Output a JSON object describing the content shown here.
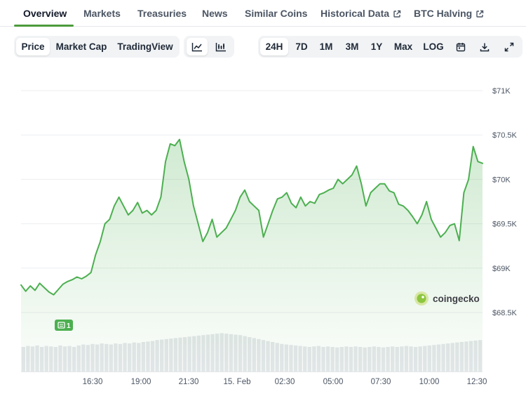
{
  "tabs": [
    {
      "label": "Overview",
      "active": true
    },
    {
      "label": "Markets"
    },
    {
      "label": "Treasuries"
    },
    {
      "label": "News"
    },
    {
      "label": "Similar Coins"
    },
    {
      "label": "Historical Data",
      "external": true
    },
    {
      "label": "BTC Halving",
      "external": true
    }
  ],
  "toolbar": {
    "metric_options": [
      "Price",
      "Market Cap",
      "TradingView"
    ],
    "selected_metric": "Price",
    "chart_styles": [
      "line-chart-icon",
      "candlestick-chart-icon"
    ],
    "selected_style": "line-chart-icon",
    "ranges": [
      "24H",
      "7D",
      "1M",
      "3M",
      "1Y",
      "Max",
      "LOG"
    ],
    "selected_range": "24H",
    "actions": [
      "calendar-icon",
      "download-icon",
      "expand-icon"
    ]
  },
  "colors": {
    "accent": "#4b9b3c",
    "line": "#4caf50",
    "volume": "#e4e7ea"
  },
  "watermark": "coingecko",
  "event_badge": "1",
  "chart_data": {
    "type": "area",
    "x_tick_labels": [
      "16:30",
      "19:00",
      "21:30",
      "15. Feb",
      "02:30",
      "05:00",
      "07:30",
      "10:00",
      "12:30"
    ],
    "y_tick_labels": [
      "$71K",
      "$70.5K",
      "$70K",
      "$69.5K",
      "$69K",
      "$68.5K"
    ],
    "ylim": [
      68400,
      71100
    ],
    "grid": true,
    "series": [
      {
        "values": [
          68810,
          68740,
          68800,
          68750,
          68830,
          68780,
          68730,
          68700,
          68760,
          68820,
          68850,
          68870,
          68900,
          68880,
          68910,
          68950,
          69150,
          69300,
          69500,
          69550,
          69700,
          69800,
          69700,
          69600,
          69650,
          69740,
          69620,
          69650,
          69600,
          69650,
          69800,
          70200,
          70400,
          70380,
          70450,
          70200,
          70000,
          69700,
          69500,
          69300,
          69400,
          69550,
          69350,
          69400,
          69450,
          69550,
          69650,
          69800,
          69880,
          69750,
          69700,
          69650,
          69350,
          69500,
          69650,
          69780,
          69800,
          69850,
          69730,
          69680,
          69800,
          69700,
          69750,
          69730,
          69830,
          69850,
          69880,
          69900,
          70000,
          69950,
          70000,
          70050,
          70150,
          69950,
          69700,
          69850,
          69900,
          69950,
          69950,
          69870,
          69850,
          69720,
          69700,
          69650,
          69580,
          69500,
          69600,
          69750,
          69550,
          69450,
          69350,
          69400,
          69480,
          69500,
          69310,
          69850,
          70000,
          70370,
          70200,
          70180
        ],
        "volume": [
          0.5,
          0.52,
          0.51,
          0.53,
          0.5,
          0.52,
          0.51,
          0.5,
          0.53,
          0.51,
          0.52,
          0.5,
          0.53,
          0.55,
          0.54,
          0.56,
          0.55,
          0.57,
          0.56,
          0.55,
          0.57,
          0.56,
          0.58,
          0.57,
          0.59,
          0.58,
          0.6,
          0.61,
          0.62,
          0.64,
          0.65,
          0.66,
          0.67,
          0.68,
          0.69,
          0.7,
          0.71,
          0.72,
          0.73,
          0.74,
          0.75,
          0.76,
          0.77,
          0.78,
          0.77,
          0.76,
          0.75,
          0.74,
          0.72,
          0.7,
          0.68,
          0.66,
          0.64,
          0.62,
          0.6,
          0.58,
          0.56,
          0.55,
          0.54,
          0.53,
          0.52,
          0.51,
          0.5,
          0.51,
          0.52,
          0.5,
          0.51,
          0.5,
          0.49,
          0.5,
          0.51,
          0.5,
          0.51,
          0.5,
          0.49,
          0.5,
          0.51,
          0.5,
          0.49,
          0.5,
          0.51,
          0.5,
          0.51,
          0.52,
          0.51,
          0.5,
          0.51,
          0.52,
          0.53,
          0.54,
          0.55,
          0.56,
          0.57,
          0.58,
          0.59,
          0.6,
          0.61,
          0.62,
          0.63,
          0.64
        ]
      }
    ]
  }
}
